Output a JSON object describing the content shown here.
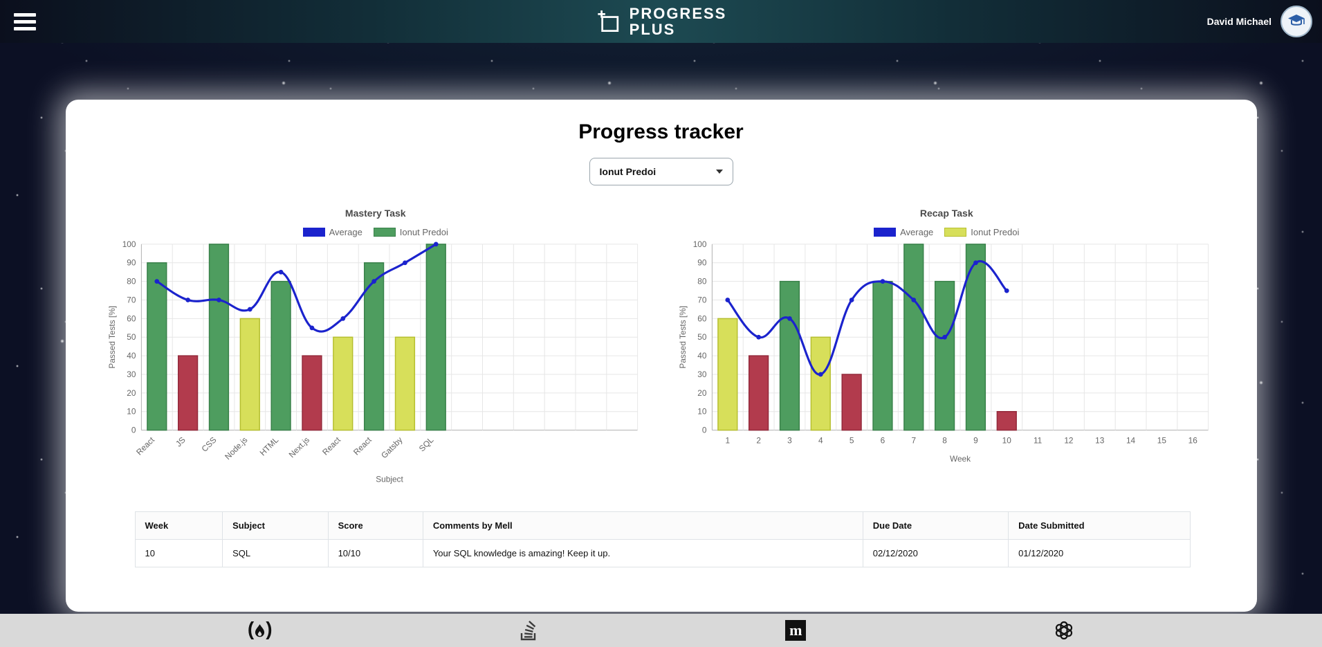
{
  "palette": {
    "blue": "#1b23cd",
    "green": {
      "fill": "#4e9d5f",
      "stroke": "#39814a"
    },
    "red": {
      "fill": "#b23b4d",
      "stroke": "#93293b"
    },
    "yellow": {
      "fill": "#d7df5a",
      "stroke": "#b6bf2f"
    },
    "grid": "#e6e6e6",
    "axis": "#b0b0b0",
    "tick_text": "#666666"
  },
  "header": {
    "brand_line1": "PROGRESS",
    "brand_line2": "PLUS",
    "user_name": "David Michael"
  },
  "page": {
    "title": "Progress tracker",
    "student_selector_value": "Ionut Predoi"
  },
  "chart_data": [
    {
      "type": "bar",
      "title": "Mastery Task",
      "legend": [
        {
          "label": "Average",
          "color_key": "blue"
        },
        {
          "label": "Ionut Predoi",
          "color_key": "green"
        }
      ],
      "categories": [
        "React",
        "JS",
        "CSS",
        "Node.js",
        "HTML",
        "Next.js",
        "React",
        "React",
        "Gatsby",
        "SQL"
      ],
      "x_slots": 16,
      "rotate_labels": true,
      "bars": {
        "name": "Ionut Predoi",
        "values": [
          90,
          40,
          100,
          60,
          80,
          40,
          50,
          90,
          50,
          100
        ],
        "colors": [
          "green",
          "red",
          "green",
          "yellow",
          "green",
          "red",
          "yellow",
          "green",
          "yellow",
          "green"
        ]
      },
      "line": {
        "name": "Average",
        "values": [
          80,
          70,
          70,
          65,
          85,
          55,
          60,
          80,
          90,
          100
        ]
      },
      "xlabel": "Subject",
      "ylabel": "Passed Tests [%]",
      "ylim": [
        0,
        100
      ],
      "ytick": 10,
      "legend_position": "top",
      "grid": true
    },
    {
      "type": "bar",
      "title": "Recap Task",
      "legend": [
        {
          "label": "Average",
          "color_key": "blue"
        },
        {
          "label": "Ionut Predoi",
          "color_key": "yellow"
        }
      ],
      "categories": [
        "1",
        "2",
        "3",
        "4",
        "5",
        "6",
        "7",
        "8",
        "9",
        "10",
        "11",
        "12",
        "13",
        "14",
        "15",
        "16"
      ],
      "x_slots": 16,
      "rotate_labels": false,
      "bars": {
        "name": "Ionut Predoi",
        "values": [
          60,
          40,
          80,
          50,
          30,
          80,
          100,
          80,
          100,
          10
        ],
        "colors": [
          "yellow",
          "red",
          "green",
          "yellow",
          "red",
          "green",
          "green",
          "green",
          "green",
          "red"
        ]
      },
      "line": {
        "name": "Average",
        "values": [
          70,
          50,
          60,
          30,
          70,
          80,
          70,
          50,
          90,
          75
        ]
      },
      "xlabel": "Week",
      "ylabel": "Passed Tests [%]",
      "ylim": [
        0,
        100
      ],
      "ytick": 10,
      "legend_position": "top",
      "grid": true
    }
  ],
  "table": {
    "columns": [
      "Week",
      "Subject",
      "Score",
      "Comments by Mell",
      "Due Date",
      "Date Submitted"
    ],
    "col_widths": [
      "8.3%",
      "10%",
      "9%",
      "41.7%",
      "13.8%",
      "17.2%"
    ],
    "rows": [
      [
        "10",
        "SQL",
        "10/10",
        "Your SQL knowledge is amazing! Keep it up.",
        "02/12/2020",
        "01/12/2020"
      ]
    ]
  },
  "footer": {
    "icons": [
      "freecodecamp",
      "stackoverflow",
      "medium",
      "openai"
    ]
  }
}
